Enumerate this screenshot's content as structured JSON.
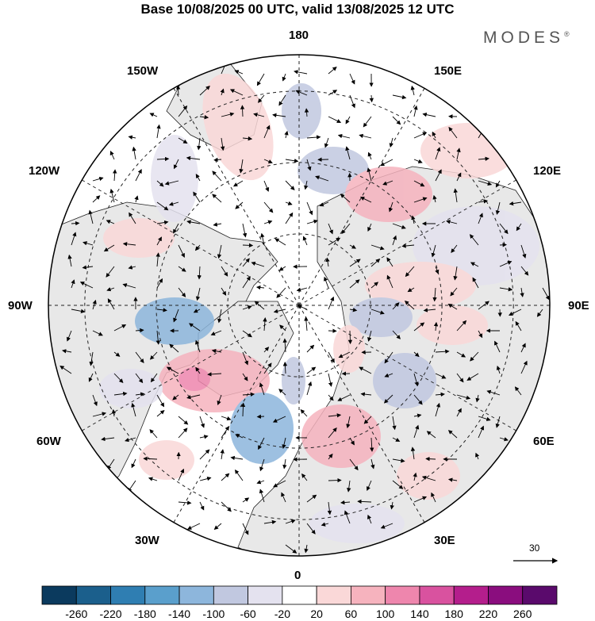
{
  "title": "Base 10/08/2025 00 UTC, valid 13/08/2025 12 UTC",
  "brand": "MODES",
  "brand_mark": "®",
  "longitude_labels": {
    "top": "180",
    "bottom": "0",
    "left": "90W",
    "right": "90E",
    "upper_left_1": "150W",
    "upper_left_2": "120W",
    "upper_right_1": "150E",
    "upper_right_2": "120E",
    "lower_left_1": "60W",
    "lower_left_2": "30W",
    "lower_right_1": "60E",
    "lower_right_2": "30E"
  },
  "reference_vector": {
    "label": "30"
  },
  "colorbar": {
    "labels": [
      "-260",
      "-220",
      "-180",
      "-140",
      "-100",
      "-60",
      "-20",
      "20",
      "60",
      "100",
      "140",
      "180",
      "220",
      "260"
    ],
    "colors": [
      "#0b3a5e",
      "#1b5f8c",
      "#2f7eb2",
      "#5a9fcc",
      "#8db6dc",
      "#c1c8e0",
      "#e4e2ef",
      "#ffffff",
      "#fad8d8",
      "#f6b3be",
      "#ee86ad",
      "#d9529f",
      "#b41e8c",
      "#8a0d7e",
      "#5a0a6c"
    ]
  },
  "colors": {
    "land": "#e8e8e8",
    "coast": "#222222",
    "grid": "#222222"
  }
}
